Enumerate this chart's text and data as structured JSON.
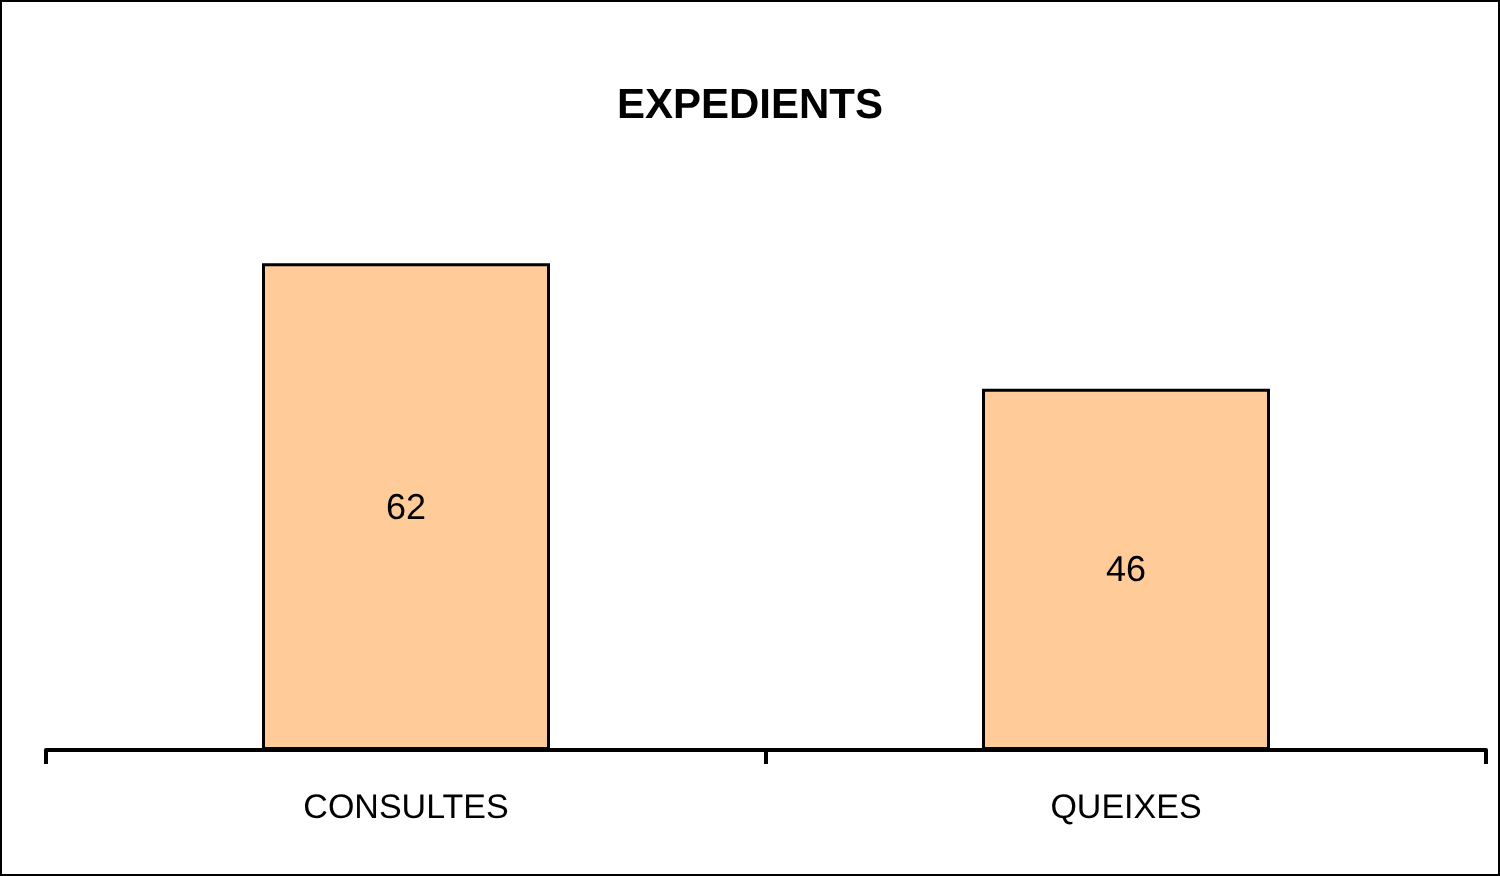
{
  "chart_data": {
    "type": "bar",
    "title": "EXPEDIENTS",
    "categories": [
      "CONSULTES",
      "QUEIXES"
    ],
    "values": [
      62,
      46
    ],
    "color": "#ffcc99",
    "data_labels": true
  }
}
